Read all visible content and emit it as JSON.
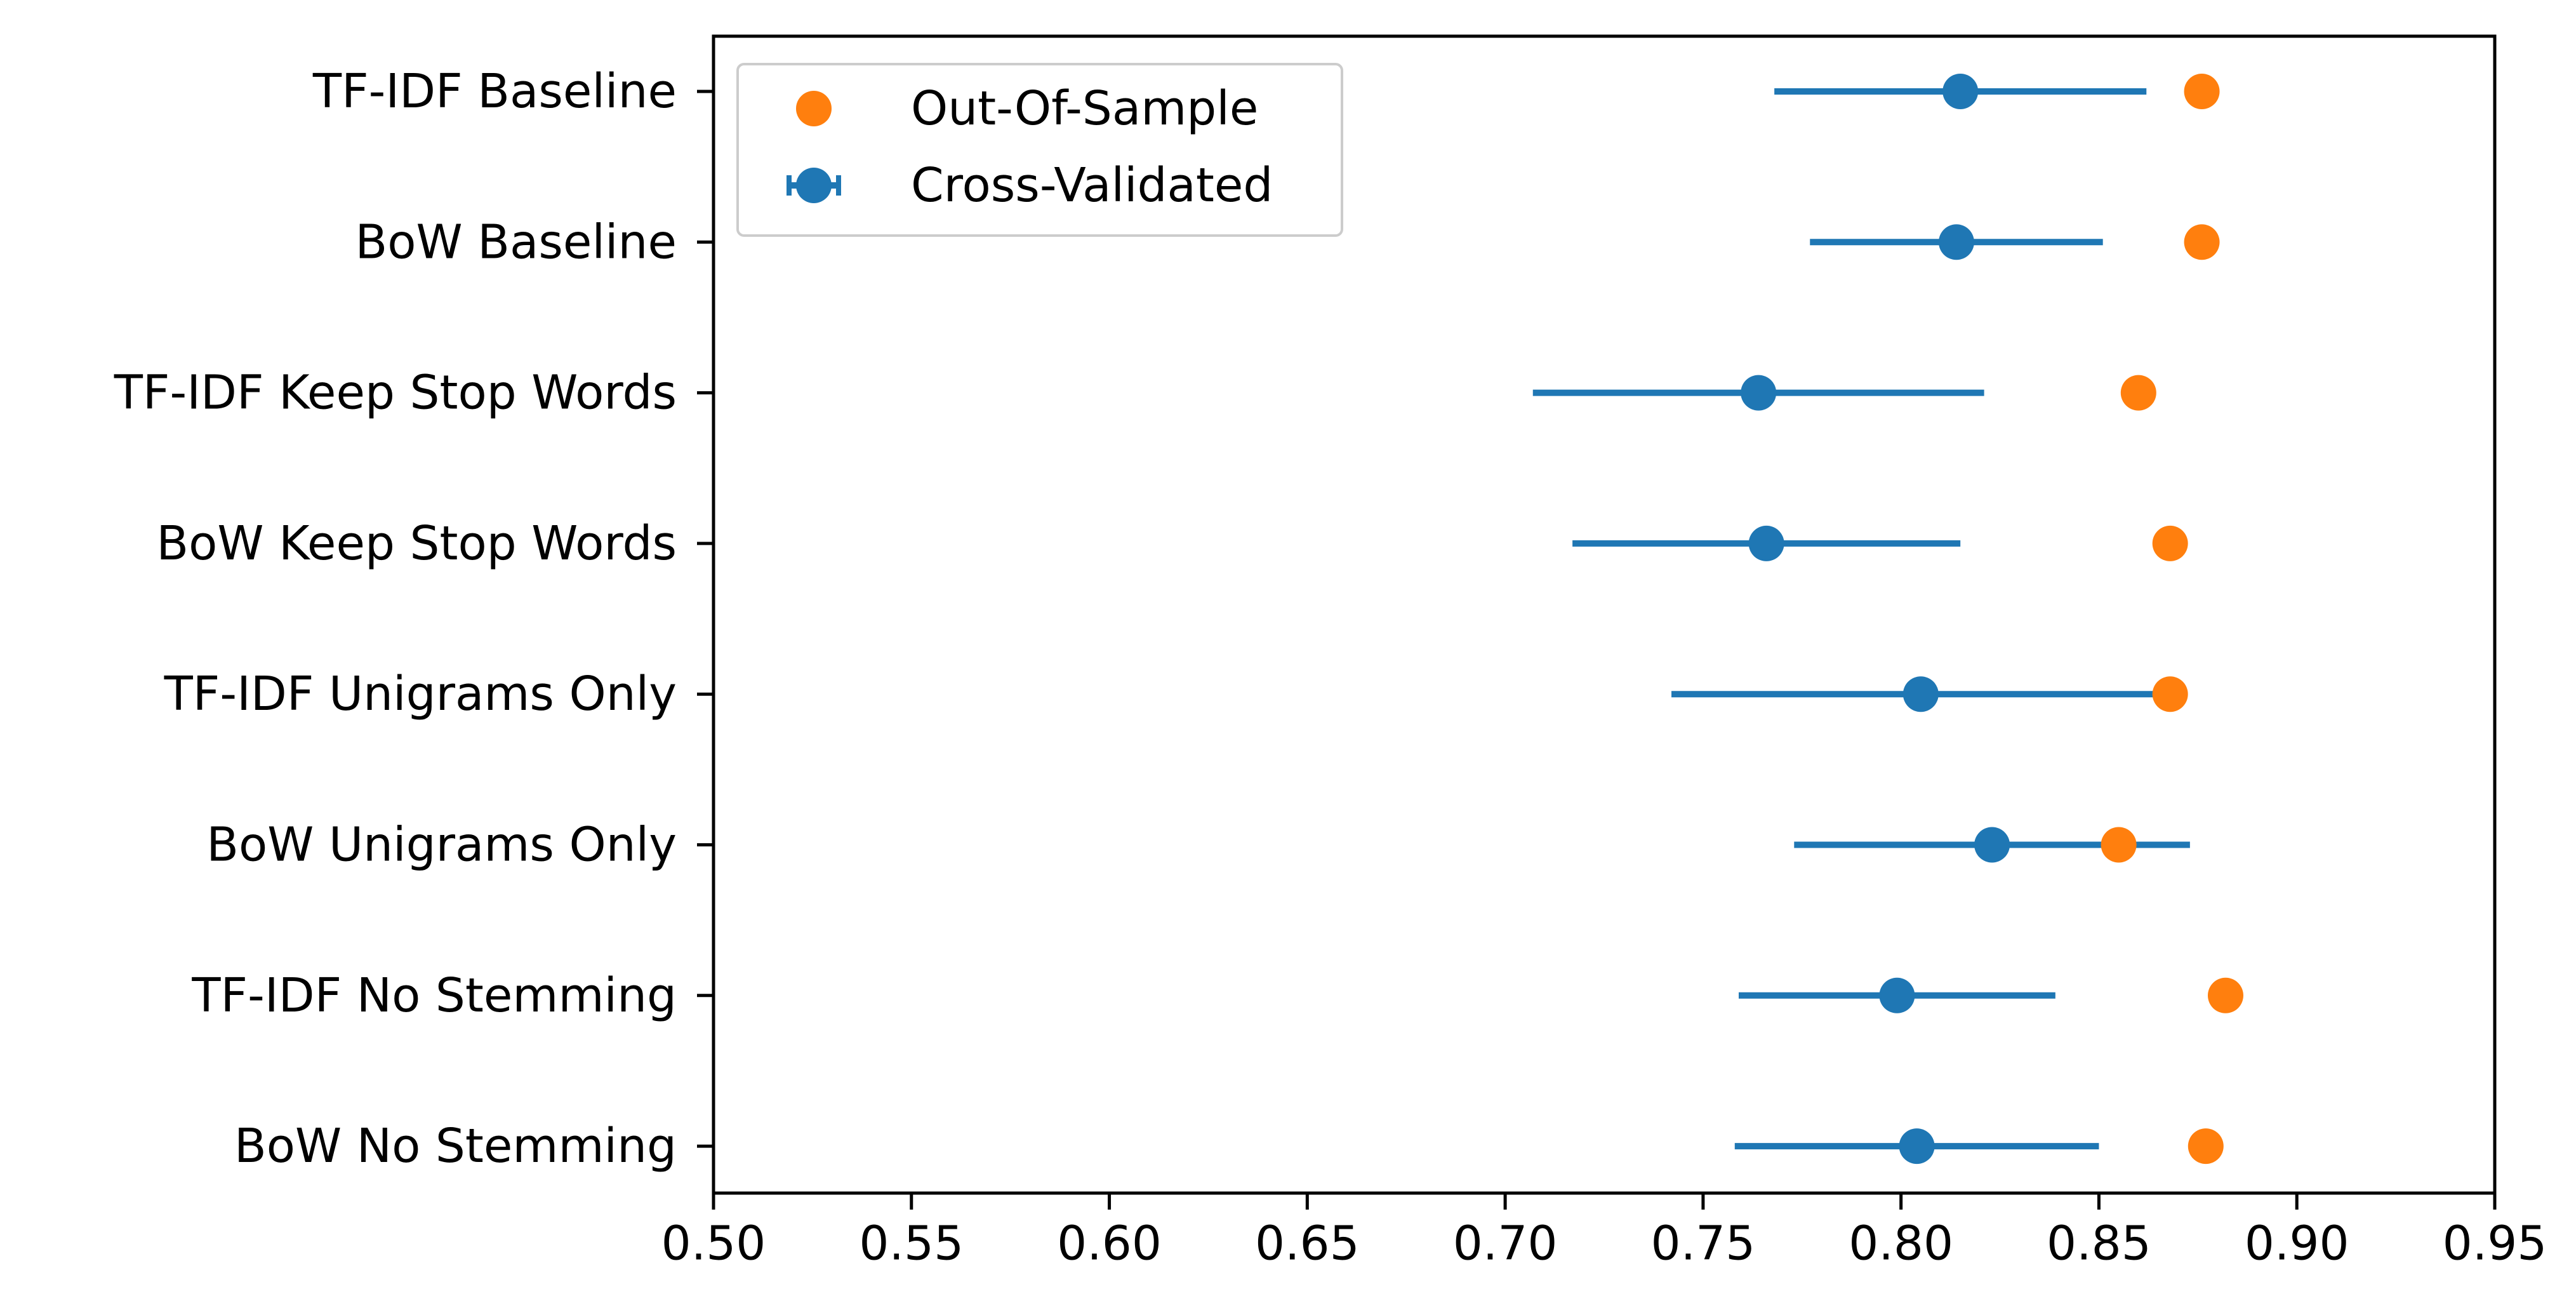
{
  "chart_data": {
    "type": "scatter",
    "title": "",
    "xlabel": "",
    "ylabel": "",
    "xlim": [
      0.5,
      0.95
    ],
    "x_ticks": [
      "0.50",
      "0.55",
      "0.60",
      "0.65",
      "0.70",
      "0.75",
      "0.80",
      "0.85",
      "0.90",
      "0.95"
    ],
    "categories": [
      "TF-IDF Baseline",
      "BoW Baseline",
      "TF-IDF Keep Stop Words",
      "BoW Keep Stop Words",
      "TF-IDF Unigrams Only",
      "BoW Unigrams Only",
      "TF-IDF No Stemming",
      "BoW No Stemming"
    ],
    "series": [
      {
        "name": "Out-Of-Sample",
        "color": "#ff7f0e",
        "values": [
          0.876,
          0.876,
          0.86,
          0.868,
          0.868,
          0.855,
          0.882,
          0.877
        ]
      },
      {
        "name": "Cross-Validated",
        "color": "#1f77b4",
        "values": [
          0.815,
          0.814,
          0.764,
          0.766,
          0.805,
          0.823,
          0.799,
          0.804
        ],
        "error": [
          0.047,
          0.037,
          0.057,
          0.049,
          0.063,
          0.05,
          0.04,
          0.046
        ]
      }
    ],
    "grid": false,
    "legend_position": "upper-left"
  }
}
